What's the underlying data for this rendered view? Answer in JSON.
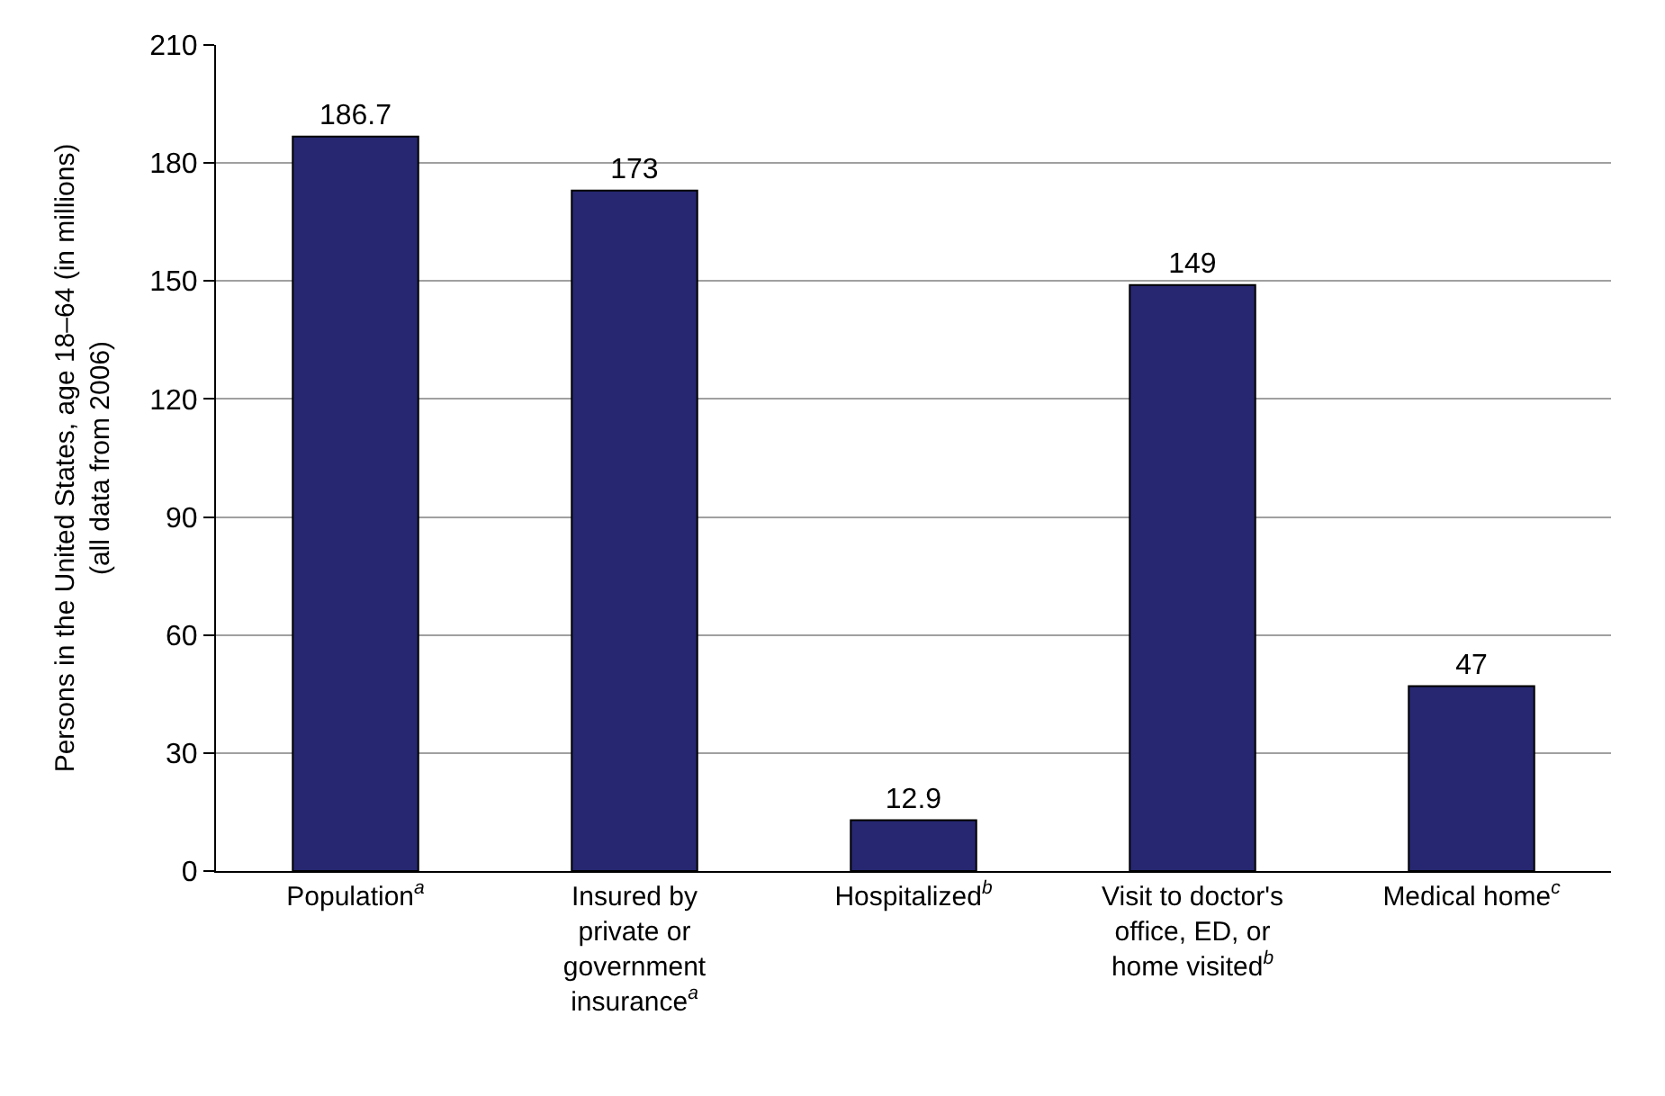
{
  "chart_data": {
    "type": "bar",
    "ylabel": "Persons in the United States, age 18–64 (in millions) (all data from 2006)",
    "categories": [
      "Population$^{a}$",
      "Insured by private or government insurance$^{a}$",
      "Hospitalized$^{b}$",
      "Visit to doctor's office, ED, or home visited$^{b}$",
      "Medical home$^{c}$"
    ],
    "values": [
      186.7,
      173,
      12.9,
      149,
      47
    ],
    "value_labels": [
      "186.7",
      "173",
      "12.9",
      "149",
      "47"
    ],
    "color": "#262770",
    "ylim": [
      0,
      210
    ],
    "yticks": [
      0,
      30,
      60,
      90,
      120,
      150,
      180,
      210
    ],
    "grid": "y"
  }
}
